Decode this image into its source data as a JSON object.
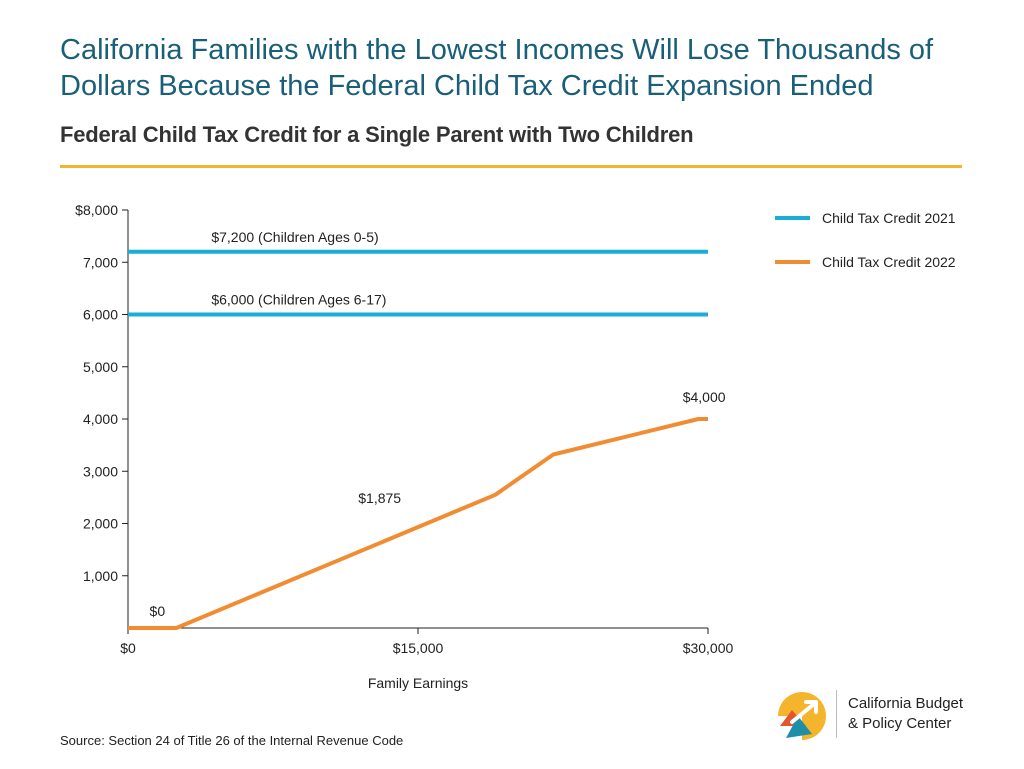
{
  "header": {
    "title": "California Families with the Lowest Incomes Will Lose Thousands of Dollars Because the Federal Child Tax Credit Expansion Ended",
    "subtitle": "Federal Child Tax Credit for a Single Parent with Two Children"
  },
  "chart_data": {
    "type": "line",
    "xlabel": "Family Earnings",
    "ylabel": "",
    "xlim": [
      0,
      30000
    ],
    "ylim": [
      0,
      8000
    ],
    "x_ticks": [
      {
        "value": 0,
        "label": "$0"
      },
      {
        "value": 15000,
        "label": "$15,000"
      },
      {
        "value": 30000,
        "label": "$30,000"
      }
    ],
    "y_ticks": [
      {
        "value": 1000,
        "label": "1,000"
      },
      {
        "value": 2000,
        "label": "2,000"
      },
      {
        "value": 3000,
        "label": "3,000"
      },
      {
        "value": 4000,
        "label": "4,000"
      },
      {
        "value": 5000,
        "label": "5,000"
      },
      {
        "value": 6000,
        "label": "6,000"
      },
      {
        "value": 7000,
        "label": "7,000"
      },
      {
        "value": 8000,
        "label": "$8,000"
      }
    ],
    "grid": false,
    "legend_position": "top-right",
    "series": [
      {
        "name": "Child Tax Credit 2021",
        "color": "#1aaed6",
        "points": [
          [
            0,
            7200
          ],
          [
            30000,
            7200
          ]
        ]
      },
      {
        "name": "Child Tax Credit 2021",
        "color": "#1aaed6",
        "points": [
          [
            0,
            6000
          ],
          [
            30000,
            6000
          ]
        ]
      },
      {
        "name": "Child Tax Credit 2022",
        "color": "#f28c33",
        "points": [
          [
            0,
            0
          ],
          [
            2500,
            0
          ],
          [
            19000,
            2550
          ],
          [
            22000,
            3320
          ],
          [
            29500,
            4000
          ],
          [
            30000,
            4000
          ]
        ]
      }
    ],
    "legend": [
      {
        "name": "Child Tax Credit 2021",
        "color": "#1aaed6"
      },
      {
        "name": "Child Tax Credit 2022",
        "color": "#f28c33"
      }
    ],
    "annotations": [
      {
        "text": "$7,200 (Children Ages 0-5)",
        "x": 2500,
        "y": 7200
      },
      {
        "text": "$6,000 (Children Ages 6-17)",
        "x": 2500,
        "y": 6000
      },
      {
        "text": "$4,000",
        "x": 29800,
        "y": 4000
      },
      {
        "text": "$1,875",
        "x": 14000,
        "y": 1875
      },
      {
        "text": "$0",
        "x": 1000,
        "y": 0
      }
    ]
  },
  "footer": {
    "source": "Source: Section 24 of Title 26 of the Internal Revenue Code",
    "logo_line1": "California Budget",
    "logo_line2": "& Policy Center"
  }
}
